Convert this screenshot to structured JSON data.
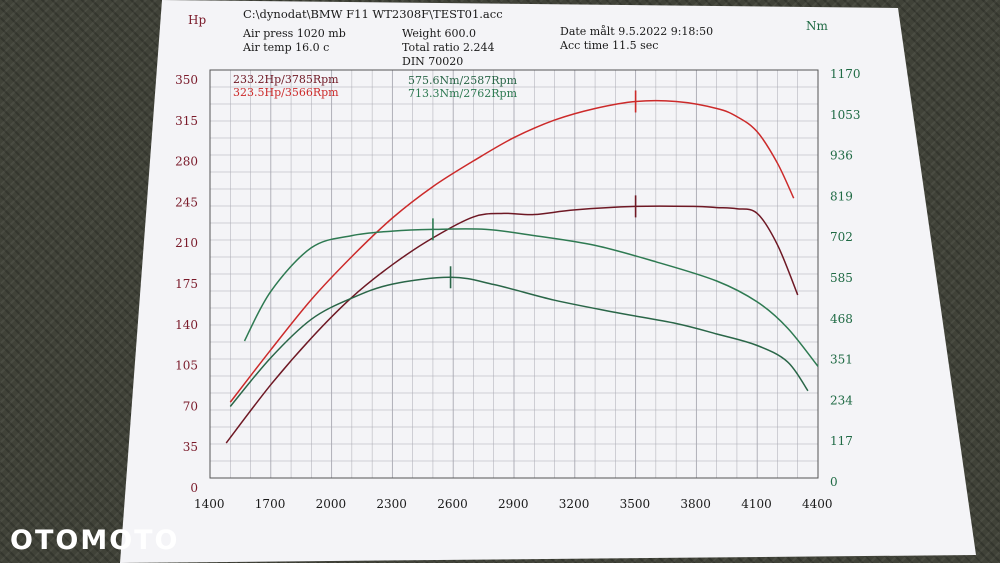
{
  "header": {
    "file_path": "C:\\dynodat\\BMW F11 WT2308F\\TEST01.acc",
    "air_press": "Air press  1020 mb",
    "air_temp": "Air temp  16.0 c",
    "weight": "Weight   600.0",
    "total_ratio": "Total ratio 2.244",
    "din": "DIN 70020",
    "date": "Date målt 9.5.2022 9:18:50",
    "acc_time": "Acc time   11.5 sec"
  },
  "peaks": {
    "hp_before": "233.2Hp/3785Rpm",
    "hp_after": "323.5Hp/3566Rpm",
    "nm_before": "575.6Nm/2587Rpm",
    "nm_after": "713.3Nm/2762Rpm"
  },
  "watermark": "OTOMOTO",
  "colors": {
    "power_after": "#cc2a2a",
    "power_before": "#6e1824",
    "torque_after": "#2e7a52",
    "torque_before": "#2a6648",
    "grid": "#a9a9b2",
    "hp_axis_text": "#7a1a2a",
    "nm_axis_text": "#1f6a44"
  },
  "chart_data": {
    "type": "line",
    "x_unit_label": "",
    "xlim": [
      1400,
      4400
    ],
    "x_ticks": [
      1400,
      1700,
      2000,
      2300,
      2600,
      2900,
      3200,
      3500,
      3800,
      4100,
      4400
    ],
    "y_left": {
      "label": "Hp",
      "lim": [
        0,
        350
      ],
      "ticks": [
        0,
        35,
        70,
        105,
        140,
        175,
        210,
        245,
        280,
        315,
        350
      ]
    },
    "y_right": {
      "label": "Nm",
      "lim": [
        0,
        1170
      ],
      "ticks": [
        0,
        117,
        234,
        351,
        468,
        585,
        702,
        819,
        936,
        1053,
        1170
      ]
    },
    "grid": true,
    "series": [
      {
        "axis": "left",
        "color_key": "power_after",
        "x": [
          1500,
          1700,
          1900,
          2100,
          2300,
          2500,
          2700,
          2900,
          3100,
          3300,
          3500,
          3700,
          3900,
          4000,
          4100,
          4200,
          4280
        ],
        "y": [
          65,
          110,
          153,
          190,
          223,
          250,
          272,
          292,
          307,
          317,
          323,
          323,
          317,
          310,
          297,
          270,
          240
        ]
      },
      {
        "axis": "left",
        "color_key": "power_before",
        "x": [
          1480,
          1700,
          1900,
          2100,
          2300,
          2500,
          2700,
          2850,
          3000,
          3200,
          3500,
          3785,
          3900,
          4000,
          4100,
          4200,
          4300
        ],
        "y": [
          30,
          80,
          120,
          155,
          183,
          206,
          224,
          227,
          226,
          230,
          233,
          233,
          232,
          231,
          227,
          200,
          157
        ]
      },
      {
        "axis": "right",
        "color_key": "torque_after",
        "x": [
          1570,
          1700,
          1900,
          2100,
          2300,
          2500,
          2762,
          3000,
          3300,
          3600,
          3900,
          4100,
          4250,
          4400
        ],
        "y": [
          393,
          535,
          660,
          695,
          708,
          713,
          713,
          695,
          667,
          620,
          565,
          505,
          430,
          320
        ]
      },
      {
        "axis": "right",
        "color_key": "torque_before",
        "x": [
          1500,
          1700,
          1900,
          2100,
          2300,
          2587,
          2800,
          3100,
          3400,
          3700,
          3900,
          4100,
          4250,
          4350
        ],
        "y": [
          205,
          345,
          455,
          516,
          556,
          575.6,
          555,
          510,
          475,
          443,
          413,
          380,
          333,
          250
        ]
      }
    ]
  }
}
